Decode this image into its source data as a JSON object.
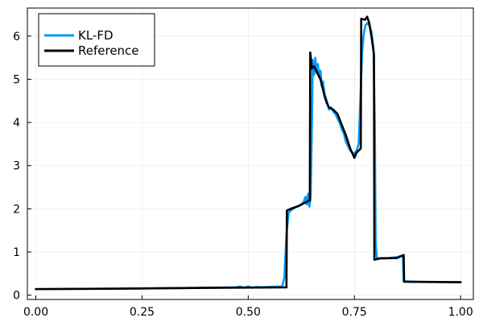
{
  "chart_data": {
    "type": "line",
    "title": "",
    "xlabel": "",
    "ylabel": "",
    "xlim": [
      -0.02,
      1.03
    ],
    "ylim": [
      -0.1,
      6.65
    ],
    "grid": true,
    "legend_position": "top-left",
    "x_ticks": [
      0.0,
      0.25,
      0.5,
      0.75,
      1.0
    ],
    "x_tick_labels": [
      "0.00",
      "0.25",
      "0.50",
      "0.75",
      "1.00"
    ],
    "y_ticks": [
      0,
      1,
      2,
      3,
      4,
      5,
      6
    ],
    "y_tick_labels": [
      "0",
      "1",
      "2",
      "3",
      "4",
      "5",
      "6"
    ],
    "series": [
      {
        "name": "KL-FD",
        "color": "#009af9",
        "points": [
          [
            0.0,
            0.14
          ],
          [
            0.2,
            0.15
          ],
          [
            0.4,
            0.17
          ],
          [
            0.47,
            0.18
          ],
          [
            0.48,
            0.2
          ],
          [
            0.49,
            0.17
          ],
          [
            0.5,
            0.2
          ],
          [
            0.51,
            0.17
          ],
          [
            0.52,
            0.19
          ],
          [
            0.53,
            0.18
          ],
          [
            0.55,
            0.19
          ],
          [
            0.58,
            0.2
          ],
          [
            0.585,
            0.4
          ],
          [
            0.59,
            1.4
          ],
          [
            0.595,
            1.9
          ],
          [
            0.6,
            1.96
          ],
          [
            0.61,
            2.03
          ],
          [
            0.62,
            2.07
          ],
          [
            0.63,
            2.15
          ],
          [
            0.635,
            2.28
          ],
          [
            0.638,
            2.1
          ],
          [
            0.641,
            2.35
          ],
          [
            0.644,
            2.05
          ],
          [
            0.647,
            2.25
          ],
          [
            0.65,
            4.0
          ],
          [
            0.652,
            5.45
          ],
          [
            0.655,
            5.1
          ],
          [
            0.658,
            5.5
          ],
          [
            0.661,
            5.15
          ],
          [
            0.664,
            5.35
          ],
          [
            0.667,
            5.05
          ],
          [
            0.67,
            5.2
          ],
          [
            0.673,
            4.85
          ],
          [
            0.676,
            4.95
          ],
          [
            0.68,
            4.65
          ],
          [
            0.685,
            4.5
          ],
          [
            0.69,
            4.3
          ],
          [
            0.695,
            4.35
          ],
          [
            0.7,
            4.25
          ],
          [
            0.705,
            4.2
          ],
          [
            0.71,
            4.1
          ],
          [
            0.715,
            4.0
          ],
          [
            0.72,
            3.85
          ],
          [
            0.725,
            3.75
          ],
          [
            0.73,
            3.55
          ],
          [
            0.735,
            3.45
          ],
          [
            0.74,
            3.35
          ],
          [
            0.745,
            3.3
          ],
          [
            0.75,
            3.28
          ],
          [
            0.755,
            3.35
          ],
          [
            0.76,
            3.5
          ],
          [
            0.765,
            4.8
          ],
          [
            0.768,
            5.6
          ],
          [
            0.772,
            6.05
          ],
          [
            0.776,
            6.25
          ],
          [
            0.78,
            6.3
          ],
          [
            0.785,
            6.25
          ],
          [
            0.79,
            6.1
          ],
          [
            0.795,
            5.7
          ],
          [
            0.798,
            4.0
          ],
          [
            0.8,
            1.2
          ],
          [
            0.803,
            0.85
          ],
          [
            0.81,
            0.86
          ],
          [
            0.83,
            0.86
          ],
          [
            0.85,
            0.88
          ],
          [
            0.864,
            0.92
          ],
          [
            0.866,
            0.32
          ],
          [
            0.9,
            0.31
          ],
          [
            1.0,
            0.3
          ]
        ]
      },
      {
        "name": "Reference",
        "color": "#000000",
        "points": [
          [
            0.0,
            0.14
          ],
          [
            0.2,
            0.15
          ],
          [
            0.4,
            0.17
          ],
          [
            0.59,
            0.18
          ],
          [
            0.591,
            1.96
          ],
          [
            0.6,
            2.0
          ],
          [
            0.62,
            2.07
          ],
          [
            0.645,
            2.2
          ],
          [
            0.646,
            5.62
          ],
          [
            0.65,
            5.25
          ],
          [
            0.655,
            5.3
          ],
          [
            0.66,
            5.2
          ],
          [
            0.665,
            5.1
          ],
          [
            0.67,
            5.0
          ],
          [
            0.675,
            4.8
          ],
          [
            0.68,
            4.6
          ],
          [
            0.685,
            4.45
          ],
          [
            0.69,
            4.35
          ],
          [
            0.7,
            4.3
          ],
          [
            0.71,
            4.2
          ],
          [
            0.72,
            3.95
          ],
          [
            0.73,
            3.7
          ],
          [
            0.74,
            3.4
          ],
          [
            0.75,
            3.18
          ],
          [
            0.755,
            3.3
          ],
          [
            0.76,
            3.35
          ],
          [
            0.765,
            3.4
          ],
          [
            0.766,
            6.4
          ],
          [
            0.775,
            6.38
          ],
          [
            0.78,
            6.45
          ],
          [
            0.785,
            6.3
          ],
          [
            0.79,
            6.0
          ],
          [
            0.796,
            5.58
          ],
          [
            0.797,
            0.82
          ],
          [
            0.81,
            0.85
          ],
          [
            0.85,
            0.86
          ],
          [
            0.866,
            0.93
          ],
          [
            0.867,
            0.31
          ],
          [
            1.0,
            0.3
          ]
        ]
      }
    ]
  }
}
